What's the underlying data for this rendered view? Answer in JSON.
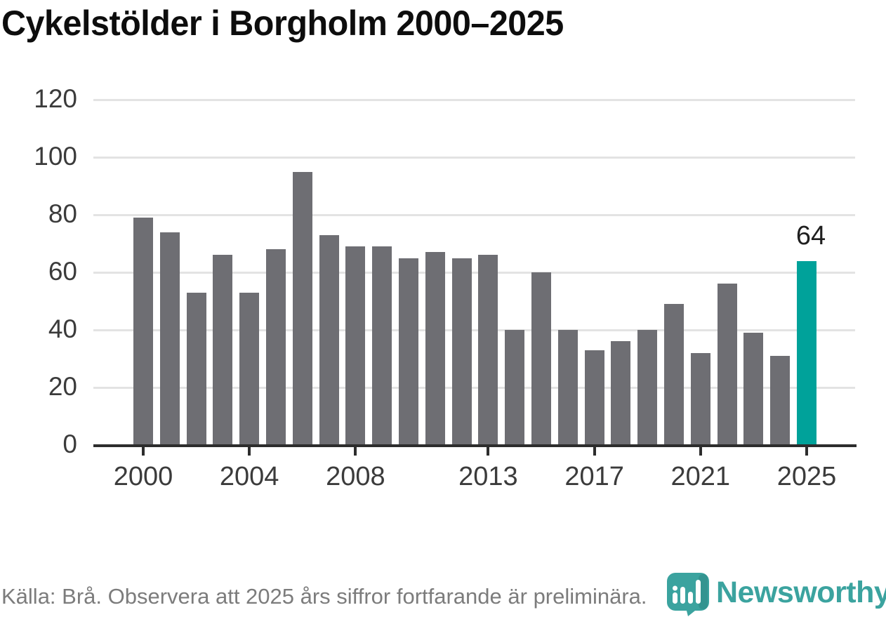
{
  "title": "Cykelstölder i Borgholm 2000–2025",
  "source_note": "Källa: Brå. Observera att 2025 års siffror fortfarande är preliminära.",
  "logo": {
    "brand": "Newsworthy",
    "icon": "newsworthy-pin-barchart-icon"
  },
  "colors": {
    "bar": "#6e6e73",
    "highlight_bar": "#00a29a",
    "gridline": "#e3e3e3",
    "axis": "#2d2d2d",
    "tick_label": "#3b3b3b",
    "title_text": "#0d0d0d",
    "source_text": "#7c7c7c",
    "brand_teal": "#3ba39f"
  },
  "chart_data": {
    "type": "bar",
    "title": "Cykelstölder i Borgholm 2000–2025",
    "x": [
      2000,
      2001,
      2002,
      2003,
      2004,
      2005,
      2006,
      2007,
      2008,
      2009,
      2010,
      2011,
      2012,
      2013,
      2014,
      2015,
      2016,
      2017,
      2018,
      2019,
      2020,
      2021,
      2022,
      2023,
      2024,
      2025
    ],
    "values": [
      79,
      74,
      53,
      66,
      53,
      68,
      95,
      73,
      69,
      69,
      65,
      67,
      65,
      66,
      40,
      60,
      40,
      33,
      36,
      40,
      49,
      32,
      56,
      39,
      31,
      64
    ],
    "highlight_year": 2025,
    "highlight_label": "64",
    "ylim": [
      0,
      120
    ],
    "y_ticks": [
      0,
      20,
      40,
      60,
      80,
      100,
      120
    ],
    "x_tick_labels": [
      "2000",
      "2004",
      "2008",
      "2013",
      "2017",
      "2021",
      "2025"
    ],
    "grid": "horizontal",
    "legend": "none",
    "xlabel": "",
    "ylabel": ""
  }
}
